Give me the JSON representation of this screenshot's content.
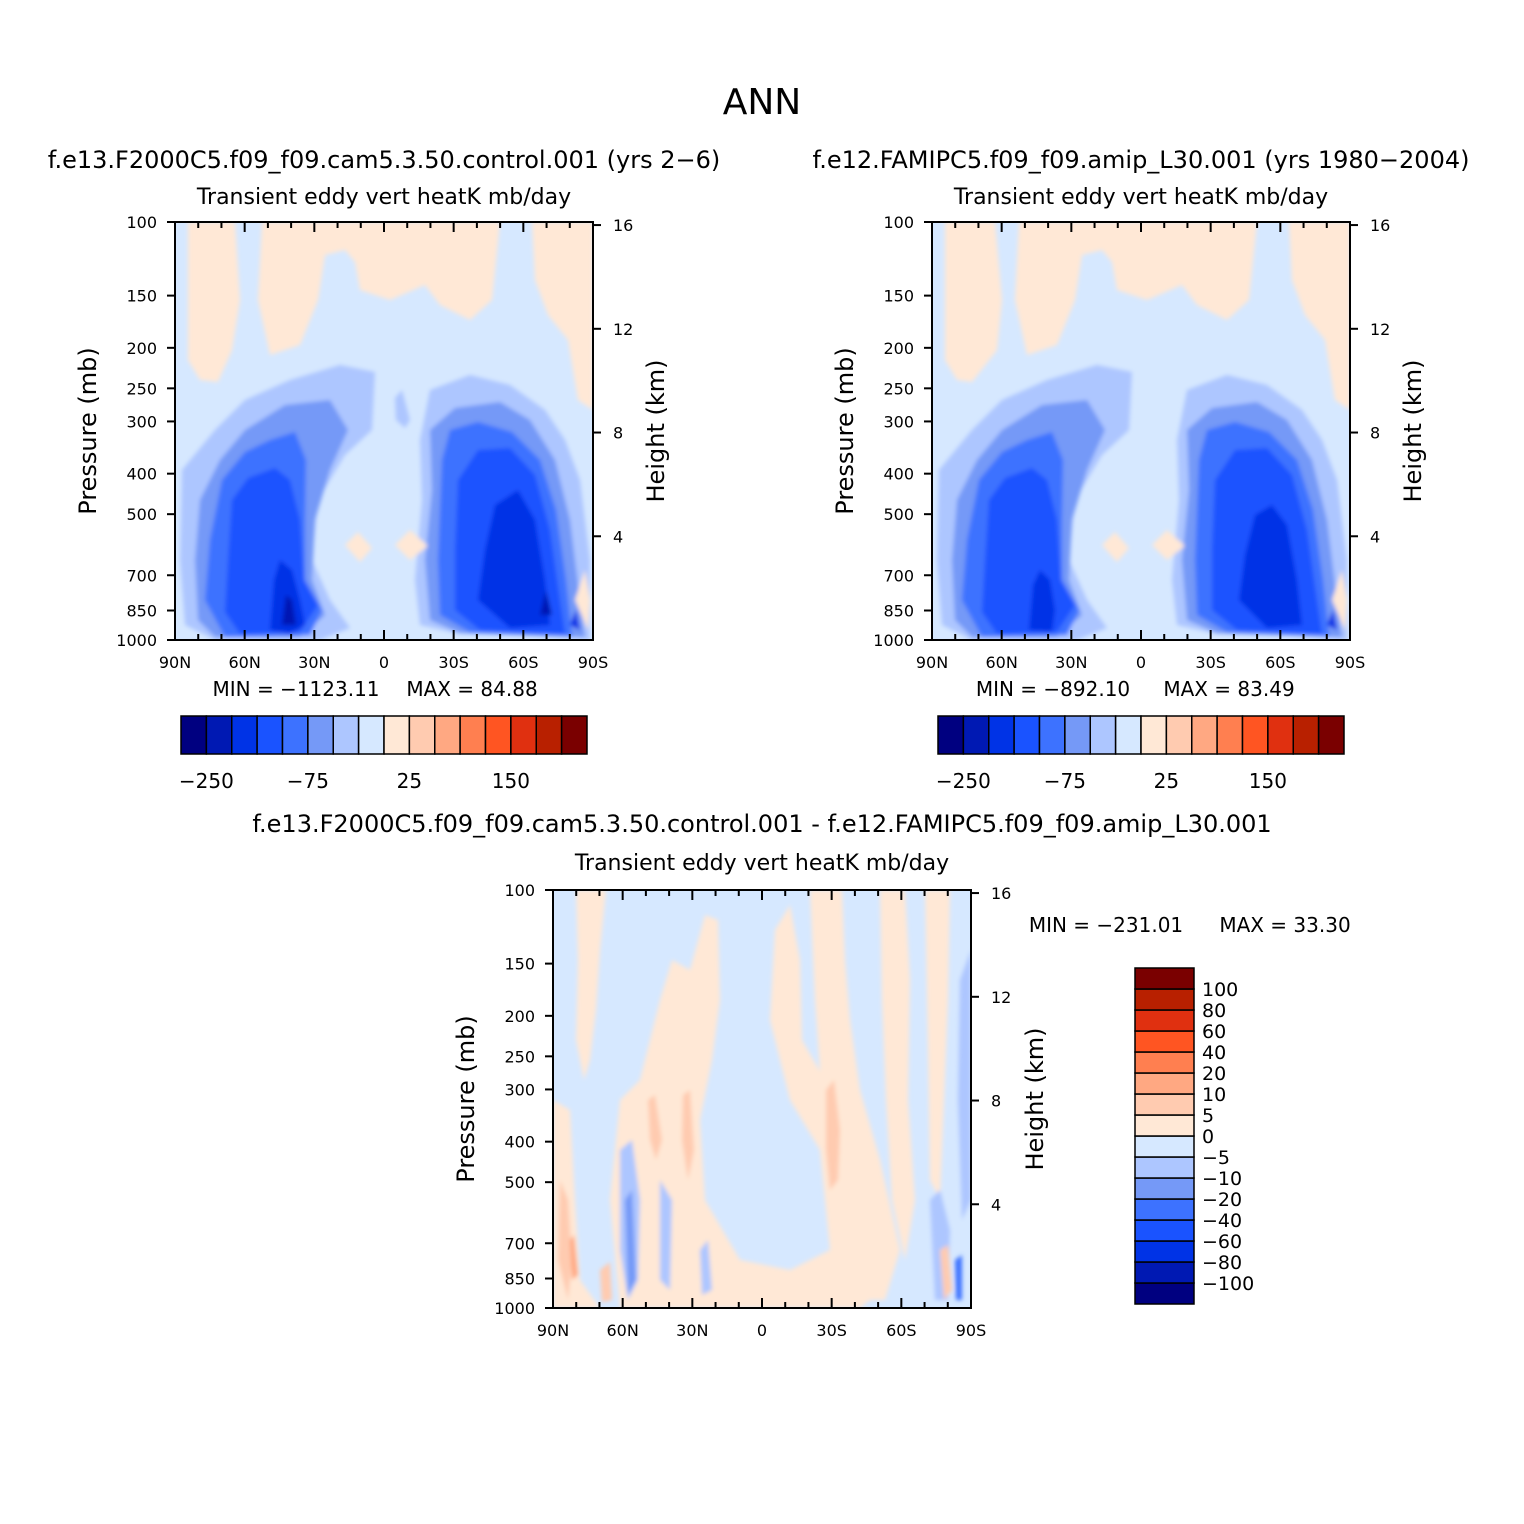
{
  "figure": {
    "title": "ANN",
    "panel_variable": "Transient eddy vert heatK mb/day",
    "y_axis_left_label": "Pressure (mb)",
    "y_axis_right_label": "Height (km)"
  },
  "panels": [
    {
      "case_title": "f.e13.F2000C5.f09_f09.cam5.3.50.control.001 (yrs 2-6)",
      "variable": "Transient eddy vert heatK mb/day",
      "min_label": "MIN = -1123.11",
      "max_label": "MAX = 84.88"
    },
    {
      "case_title": "f.e12.FAMIPC5.f09_f09.amip_L30.001 (yrs 1980-2004)",
      "variable": "Transient eddy vert heatK mb/day",
      "min_label": "MIN = -892.10",
      "max_label": "MAX = 83.49"
    },
    {
      "case_title": "f.e13.F2000C5.f09_f09.cam5.3.50.control.001 - f.e12.FAMIPC5.f09_f09.amip_L30.001",
      "variable": "Transient eddy vert heatK mb/day",
      "min_label": "MIN = -231.01",
      "max_label": "MAX = 33.30"
    }
  ],
  "colorbars": {
    "top": {
      "colors": [
        "#000080",
        "#0019b3",
        "#0033e6",
        "#1a53ff",
        "#3d72ff",
        "#7599f7",
        "#adc6ff",
        "#d6e8ff",
        "#ffe8d6",
        "#ffcbb0",
        "#ffa882",
        "#ff7f50",
        "#ff5522",
        "#e03010",
        "#b82000",
        "#7a0000"
      ],
      "tick_labels": [
        "-250",
        "-75",
        "25",
        "150"
      ]
    },
    "bottom": {
      "colors": [
        "#000080",
        "#0019b3",
        "#0033e6",
        "#1a53ff",
        "#3d72ff",
        "#7599f7",
        "#adc6ff",
        "#d6e8ff",
        "#ffe8d6",
        "#ffcbb0",
        "#ffa882",
        "#ff7f50",
        "#ff5522",
        "#e03010",
        "#b82000",
        "#7a0000"
      ],
      "tick_labels": [
        "-100",
        "-80",
        "-60",
        "-40",
        "-20",
        "-10",
        "-5",
        "0",
        "5",
        "10",
        "20",
        "40",
        "60",
        "80",
        "100"
      ]
    }
  },
  "chart_data": [
    {
      "type": "heatmap",
      "title": "Transient eddy vert heatK mb/day",
      "xlabel": "",
      "ylabel": "Pressure (mb)",
      "y2label": "Height (km)",
      "x_ticks": [
        "90N",
        "60N",
        "30N",
        "0",
        "30S",
        "60S",
        "90S"
      ],
      "y_ticks": [
        100,
        150,
        200,
        250,
        300,
        400,
        500,
        700,
        850,
        1000
      ],
      "y2_ticks": [
        16,
        12,
        8,
        4
      ],
      "y_scale": "log",
      "ylim": [
        1000,
        100
      ],
      "min": -1123.11,
      "max": 84.88
    },
    {
      "type": "heatmap",
      "title": "Transient eddy vert heatK mb/day",
      "xlabel": "",
      "ylabel": "Pressure (mb)",
      "y2label": "Height (km)",
      "x_ticks": [
        "90N",
        "60N",
        "30N",
        "0",
        "30S",
        "60S",
        "90S"
      ],
      "y_ticks": [
        100,
        150,
        200,
        250,
        300,
        400,
        500,
        700,
        850,
        1000
      ],
      "y2_ticks": [
        16,
        12,
        8,
        4
      ],
      "y_scale": "log",
      "ylim": [
        1000,
        100
      ],
      "min": -892.1,
      "max": 83.49
    },
    {
      "type": "heatmap",
      "title": "Transient eddy vert heatK mb/day",
      "xlabel": "",
      "ylabel": "Pressure (mb)",
      "y2label": "Height (km)",
      "x_ticks": [
        "90N",
        "60N",
        "30N",
        "0",
        "30S",
        "60S",
        "90S"
      ],
      "y_ticks": [
        100,
        150,
        200,
        250,
        300,
        400,
        500,
        700,
        850,
        1000
      ],
      "y2_ticks": [
        16,
        12,
        8,
        4
      ],
      "y_scale": "log",
      "ylim": [
        1000,
        100
      ],
      "min": -231.01,
      "max": 33.3
    }
  ]
}
